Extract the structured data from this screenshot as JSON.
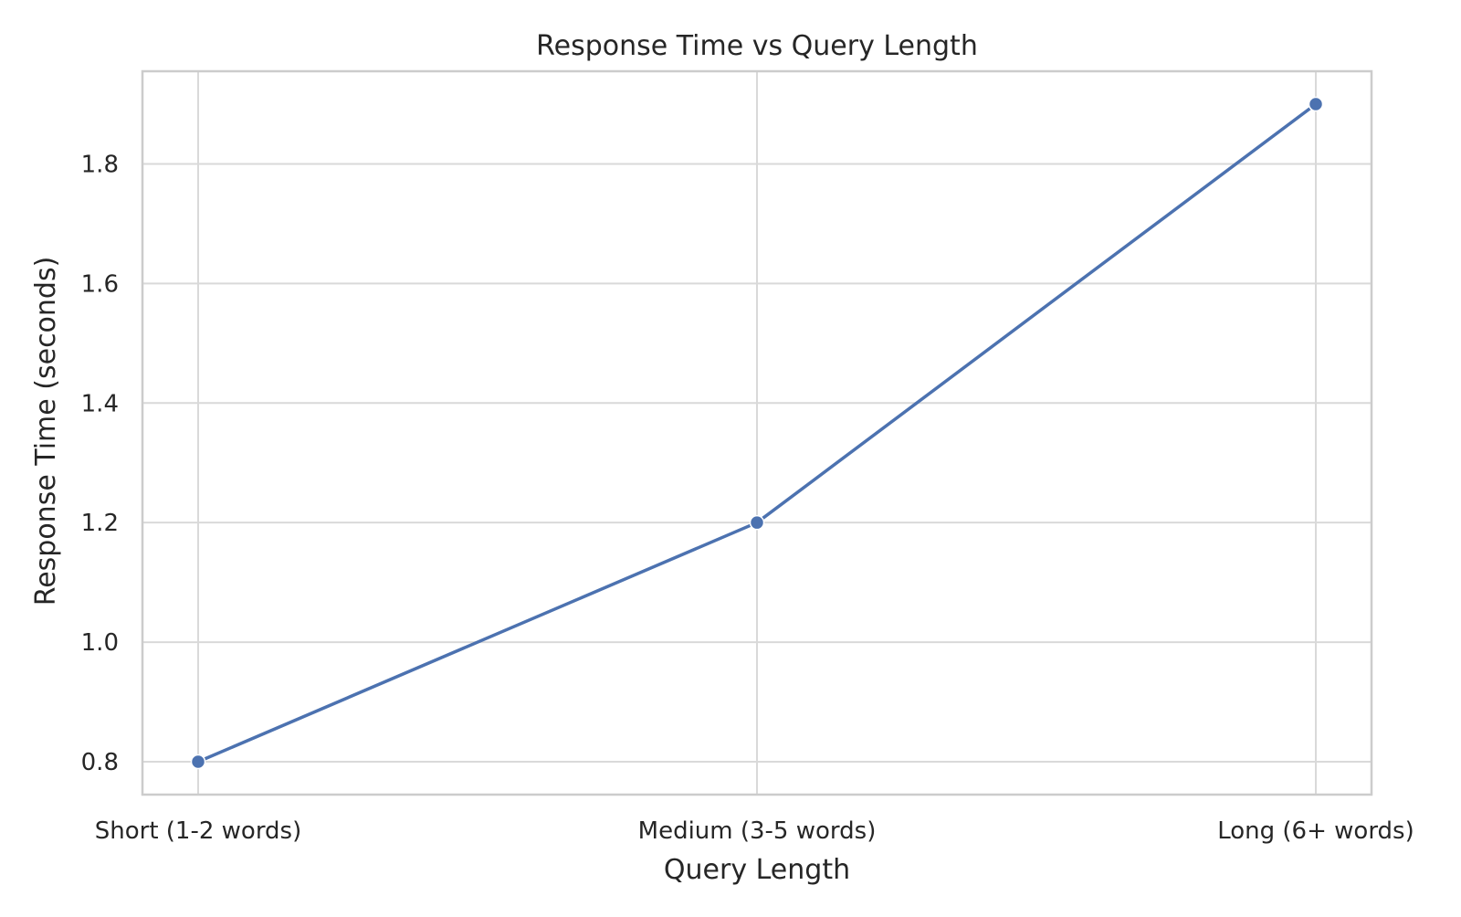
{
  "chart_data": {
    "type": "line",
    "title": "Response Time vs Query Length",
    "xlabel": "Query Length",
    "ylabel": "Response Time (seconds)",
    "categories": [
      "Short (1-2 words)",
      "Medium (3-5 words)",
      "Long (6+ words)"
    ],
    "series": [
      {
        "values": [
          0.8,
          1.2,
          1.9
        ]
      }
    ],
    "ylim": [
      0.745,
      1.955
    ],
    "yticks": [
      "0.8",
      "1.0",
      "1.2",
      "1.4",
      "1.6",
      "1.8"
    ],
    "grid": true,
    "colors": {
      "line": "#4c72b0",
      "grid": "#d9d9d9",
      "frame": "#cccccc",
      "text": "#262626"
    }
  }
}
